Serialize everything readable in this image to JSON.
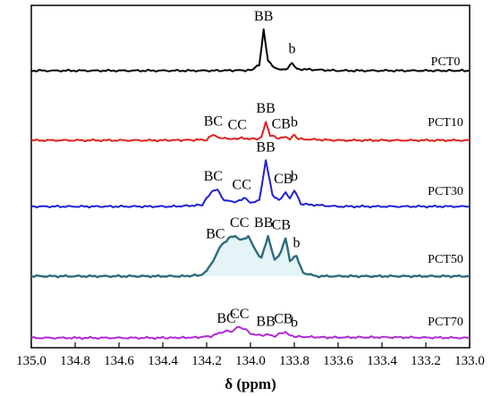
{
  "chart_data": {
    "type": "line",
    "title": "",
    "xlabel": "δ (ppm)",
    "ylabel": "",
    "xlim": [
      135.0,
      133.0
    ],
    "x_reversed": true,
    "x_ticks": [
      "135.0",
      "134.8",
      "134.6",
      "134.4",
      "134.2",
      "134.0",
      "133.8",
      "133.6",
      "133.4",
      "133.2",
      "133.0"
    ],
    "grid": false,
    "legend": "none",
    "series": [
      {
        "name": "PCT0",
        "color": "#000000",
        "points": [
          [
            135.0,
            0.02
          ],
          [
            134.6,
            0.02
          ],
          [
            134.2,
            0.02
          ],
          [
            134.0,
            0.03
          ],
          [
            133.96,
            0.15
          ],
          [
            133.94,
            1.0
          ],
          [
            133.92,
            0.25
          ],
          [
            133.88,
            0.05
          ],
          [
            133.83,
            0.06
          ],
          [
            133.81,
            0.22
          ],
          [
            133.79,
            0.06
          ],
          [
            133.6,
            0.02
          ],
          [
            133.2,
            0.02
          ],
          [
            133.0,
            0.02
          ]
        ],
        "peak_labels": [
          {
            "text": "BB",
            "x": 133.94
          },
          {
            "text": "b",
            "x": 133.81
          }
        ]
      },
      {
        "name": "PCT10",
        "color": "#e0201e",
        "points": [
          [
            135.0,
            0.0
          ],
          [
            134.4,
            0.0
          ],
          [
            134.2,
            0.02
          ],
          [
            134.17,
            0.22
          ],
          [
            134.14,
            0.08
          ],
          [
            134.08,
            0.06
          ],
          [
            134.04,
            0.08
          ],
          [
            133.98,
            0.05
          ],
          [
            133.95,
            0.1
          ],
          [
            133.93,
            0.7
          ],
          [
            133.91,
            0.18
          ],
          [
            133.87,
            0.08
          ],
          [
            133.84,
            0.12
          ],
          [
            133.82,
            0.06
          ],
          [
            133.8,
            0.18
          ],
          [
            133.78,
            0.05
          ],
          [
            133.6,
            0.0
          ],
          [
            133.0,
            0.0
          ]
        ],
        "peak_labels": [
          {
            "text": "BC",
            "x": 134.17
          },
          {
            "text": "CC",
            "x": 134.06
          },
          {
            "text": "BB",
            "x": 133.93
          },
          {
            "text": "CB",
            "x": 133.86
          },
          {
            "text": "b",
            "x": 133.8
          }
        ]
      },
      {
        "name": "PCT30",
        "color": "#1f1fd6",
        "points": [
          [
            135.0,
            0.0
          ],
          [
            134.35,
            0.0
          ],
          [
            134.22,
            0.03
          ],
          [
            134.18,
            0.3
          ],
          [
            134.15,
            0.35
          ],
          [
            134.12,
            0.12
          ],
          [
            134.06,
            0.1
          ],
          [
            134.03,
            0.18
          ],
          [
            134.0,
            0.08
          ],
          [
            133.96,
            0.12
          ],
          [
            133.93,
            0.95
          ],
          [
            133.9,
            0.25
          ],
          [
            133.87,
            0.12
          ],
          [
            133.84,
            0.3
          ],
          [
            133.82,
            0.15
          ],
          [
            133.8,
            0.35
          ],
          [
            133.77,
            0.05
          ],
          [
            133.6,
            0.0
          ],
          [
            133.0,
            0.0
          ]
        ],
        "peak_labels": [
          {
            "text": "BC",
            "x": 134.17
          },
          {
            "text": "CC",
            "x": 134.04
          },
          {
            "text": "BB",
            "x": 133.93
          },
          {
            "text": "CB",
            "x": 133.85
          },
          {
            "text": "b",
            "x": 133.8
          }
        ]
      },
      {
        "name": "PCT50",
        "color": "#2e6b7c",
        "points": [
          [
            135.0,
            0.0
          ],
          [
            134.3,
            0.0
          ],
          [
            134.22,
            0.03
          ],
          [
            134.18,
            0.25
          ],
          [
            134.14,
            0.65
          ],
          [
            134.1,
            0.85
          ],
          [
            134.07,
            0.9
          ],
          [
            134.04,
            0.8
          ],
          [
            134.01,
            0.9
          ],
          [
            133.98,
            0.6
          ],
          [
            133.95,
            0.4
          ],
          [
            133.92,
            0.9
          ],
          [
            133.89,
            0.35
          ],
          [
            133.86,
            0.55
          ],
          [
            133.84,
            0.85
          ],
          [
            133.82,
            0.35
          ],
          [
            133.79,
            0.45
          ],
          [
            133.76,
            0.08
          ],
          [
            133.7,
            0.0
          ],
          [
            133.0,
            0.0
          ]
        ],
        "peak_labels": [
          {
            "text": "BC",
            "x": 134.16
          },
          {
            "text": "CC",
            "x": 134.05
          },
          {
            "text": "BB",
            "x": 133.94
          },
          {
            "text": "CB",
            "x": 133.86
          },
          {
            "text": "b",
            "x": 133.79
          }
        ]
      },
      {
        "name": "PCT70",
        "color": "#b028d8",
        "points": [
          [
            135.0,
            0.0
          ],
          [
            134.4,
            0.0
          ],
          [
            134.25,
            0.02
          ],
          [
            134.18,
            0.08
          ],
          [
            134.12,
            0.3
          ],
          [
            134.08,
            0.32
          ],
          [
            134.06,
            0.5
          ],
          [
            134.03,
            0.45
          ],
          [
            134.0,
            0.2
          ],
          [
            133.96,
            0.12
          ],
          [
            133.92,
            0.15
          ],
          [
            133.89,
            0.08
          ],
          [
            133.86,
            0.22
          ],
          [
            133.84,
            0.28
          ],
          [
            133.82,
            0.1
          ],
          [
            133.78,
            0.06
          ],
          [
            133.65,
            0.02
          ],
          [
            133.4,
            0.03
          ],
          [
            133.0,
            0.0
          ]
        ],
        "peak_labels": [
          {
            "text": "BC",
            "x": 134.11
          },
          {
            "text": "CC",
            "x": 134.05
          },
          {
            "text": "BB",
            "x": 133.93
          },
          {
            "text": "CB",
            "x": 133.85
          },
          {
            "text": "b",
            "x": 133.8
          }
        ]
      }
    ]
  }
}
